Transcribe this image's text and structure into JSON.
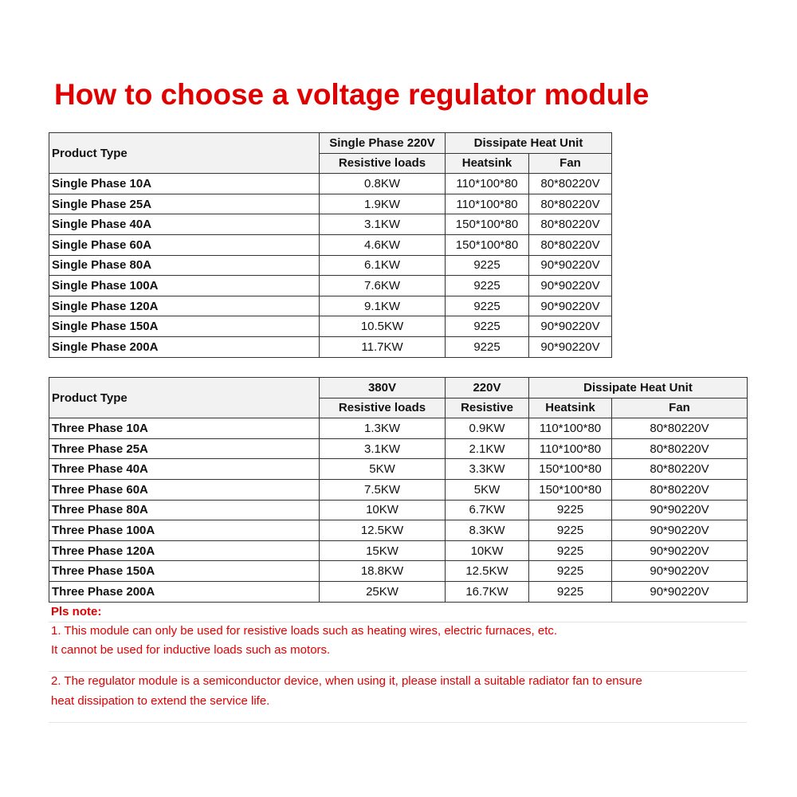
{
  "title": "How to choose a voltage regulator module",
  "table1": {
    "header": {
      "product_type": "Product Type",
      "voltage": "Single Phase 220V",
      "dissipate": "Dissipate Heat Unit",
      "loads": "Resistive loads",
      "heatsink": "Heatsink",
      "fan": "Fan"
    },
    "rows": [
      [
        "Single Phase  10A",
        "0.8KW",
        "110*100*80",
        "80*80220V"
      ],
      [
        "Single Phase  25A",
        "1.9KW",
        "110*100*80",
        "80*80220V"
      ],
      [
        "Single Phase  40A",
        "3.1KW",
        "150*100*80",
        "80*80220V"
      ],
      [
        "Single Phase  60A",
        "4.6KW",
        "150*100*80",
        "80*80220V"
      ],
      [
        "Single Phase  80A",
        "6.1KW",
        "9225",
        "90*90220V"
      ],
      [
        "Single Phase  100A",
        "7.6KW",
        "9225",
        "90*90220V"
      ],
      [
        "Single Phase  120A",
        "9.1KW",
        "9225",
        "90*90220V"
      ],
      [
        "Single Phase  150A",
        "10.5KW",
        "9225",
        "90*90220V"
      ],
      [
        "Single Phase  200A",
        "11.7KW",
        "9225",
        "90*90220V"
      ]
    ]
  },
  "table2": {
    "header": {
      "product_type": "Product Type",
      "v380": "380V",
      "v220": "220V",
      "dissipate": "Dissipate Heat Unit",
      "loads": "Resistive loads",
      "resistive": "Resistive",
      "heatsink": "Heatsink",
      "fan": "Fan"
    },
    "rows": [
      [
        "Three Phase  10A",
        "1.3KW",
        "0.9KW",
        "110*100*80",
        "80*80220V"
      ],
      [
        "Three Phase  25A",
        "3.1KW",
        "2.1KW",
        "110*100*80",
        "80*80220V"
      ],
      [
        "Three Phase  40A",
        "5KW",
        "3.3KW",
        "150*100*80",
        "80*80220V"
      ],
      [
        "Three Phase  60A",
        "7.5KW",
        "5KW",
        "150*100*80",
        "80*80220V"
      ],
      [
        "Three Phase  80A",
        "10KW",
        "6.7KW",
        "9225",
        "90*90220V"
      ],
      [
        "Three Phase  100A",
        "12.5KW",
        "8.3KW",
        "9225",
        "90*90220V"
      ],
      [
        "Three Phase  120A",
        "15KW",
        "10KW",
        "9225",
        "90*90220V"
      ],
      [
        "Three Phase  150A",
        "18.8KW",
        "12.5KW",
        "9225",
        "90*90220V"
      ],
      [
        "Three Phase  200A",
        "25KW",
        "16.7KW",
        "9225",
        "90*90220V"
      ]
    ]
  },
  "notes": {
    "heading": "Pls note:",
    "lines": [
      "1. This module can only be used for resistive loads such as heating wires, electric furnaces, etc.",
      "It cannot be used for inductive loads such as motors.",
      "2. The regulator module is a semiconductor device, when using it, please install a suitable radiator fan to ensure",
      "heat dissipation to extend the service life."
    ]
  },
  "colors": {
    "title": "#e00000",
    "note": "#e00000",
    "header_bg": "#f2f2f2"
  }
}
